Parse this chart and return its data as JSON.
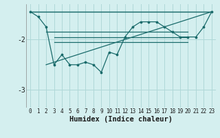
{
  "xlabel": "Humidex (Indice chaleur)",
  "background_color": "#d4efef",
  "line_color": "#1a6b6b",
  "grid_color": "#afd8d8",
  "xlim": [
    -0.5,
    23.5
  ],
  "ylim": [
    -3.35,
    -1.3
  ],
  "yticks": [
    -3,
    -2
  ],
  "xticks": [
    0,
    1,
    2,
    3,
    4,
    5,
    6,
    7,
    8,
    9,
    10,
    11,
    12,
    13,
    14,
    15,
    16,
    17,
    18,
    19,
    20,
    21,
    22,
    23
  ],
  "series": [
    {
      "x": [
        2,
        3,
        4,
        5,
        6,
        7,
        8,
        9,
        10,
        11,
        12,
        13,
        14,
        15,
        16,
        17,
        18,
        19,
        20
      ],
      "y": [
        -1.85,
        -1.85,
        -1.85,
        -1.85,
        -1.85,
        -1.85,
        -1.85,
        -1.85,
        -1.85,
        -1.85,
        -1.85,
        -1.85,
        -1.85,
        -1.85,
        -1.85,
        -1.85,
        -1.85,
        -1.85,
        -1.85
      ],
      "marker": false
    },
    {
      "x": [
        3,
        4,
        5,
        6,
        7,
        8,
        9,
        10,
        11,
        12,
        13,
        14,
        15,
        16,
        17,
        18,
        19,
        20
      ],
      "y": [
        -1.95,
        -1.95,
        -1.95,
        -1.95,
        -1.95,
        -1.95,
        -1.95,
        -1.95,
        -1.95,
        -1.95,
        -1.95,
        -1.95,
        -1.95,
        -1.95,
        -1.95,
        -1.95,
        -1.95,
        -1.95
      ],
      "marker": false
    },
    {
      "x": [
        3,
        4,
        5,
        6,
        7,
        8,
        9,
        10,
        11,
        12,
        13,
        14,
        15,
        16,
        17,
        18,
        19,
        20
      ],
      "y": [
        -2.05,
        -2.05,
        -2.05,
        -2.05,
        -2.05,
        -2.05,
        -2.05,
        -2.05,
        -2.05,
        -2.05,
        -2.05,
        -2.05,
        -2.05,
        -2.05,
        -2.05,
        -2.05,
        -2.05,
        -2.05
      ],
      "marker": false
    },
    {
      "x": [
        0,
        23
      ],
      "y": [
        -1.45,
        -1.45
      ],
      "marker": false
    },
    {
      "x": [
        0,
        23
      ],
      "y": [
        -1.45,
        -1.45
      ],
      "marker": false
    },
    {
      "x": [
        0,
        1,
        2,
        3,
        4,
        5,
        6,
        7,
        8,
        9,
        10,
        11,
        12,
        13,
        14,
        15,
        16,
        17,
        18,
        19,
        20,
        21,
        22,
        23
      ],
      "y": [
        -1.45,
        -1.55,
        -1.75,
        -2.5,
        -2.3,
        -2.5,
        -2.5,
        -2.45,
        -2.5,
        -2.65,
        -2.25,
        -2.3,
        -1.95,
        -1.75,
        -1.65,
        -1.65,
        -1.65,
        -1.75,
        -1.85,
        -1.95,
        -1.95,
        -1.95,
        -1.75,
        -1.45
      ],
      "marker": true
    },
    {
      "x": [
        2,
        23
      ],
      "y": [
        -2.5,
        -1.45
      ],
      "marker": false
    }
  ]
}
